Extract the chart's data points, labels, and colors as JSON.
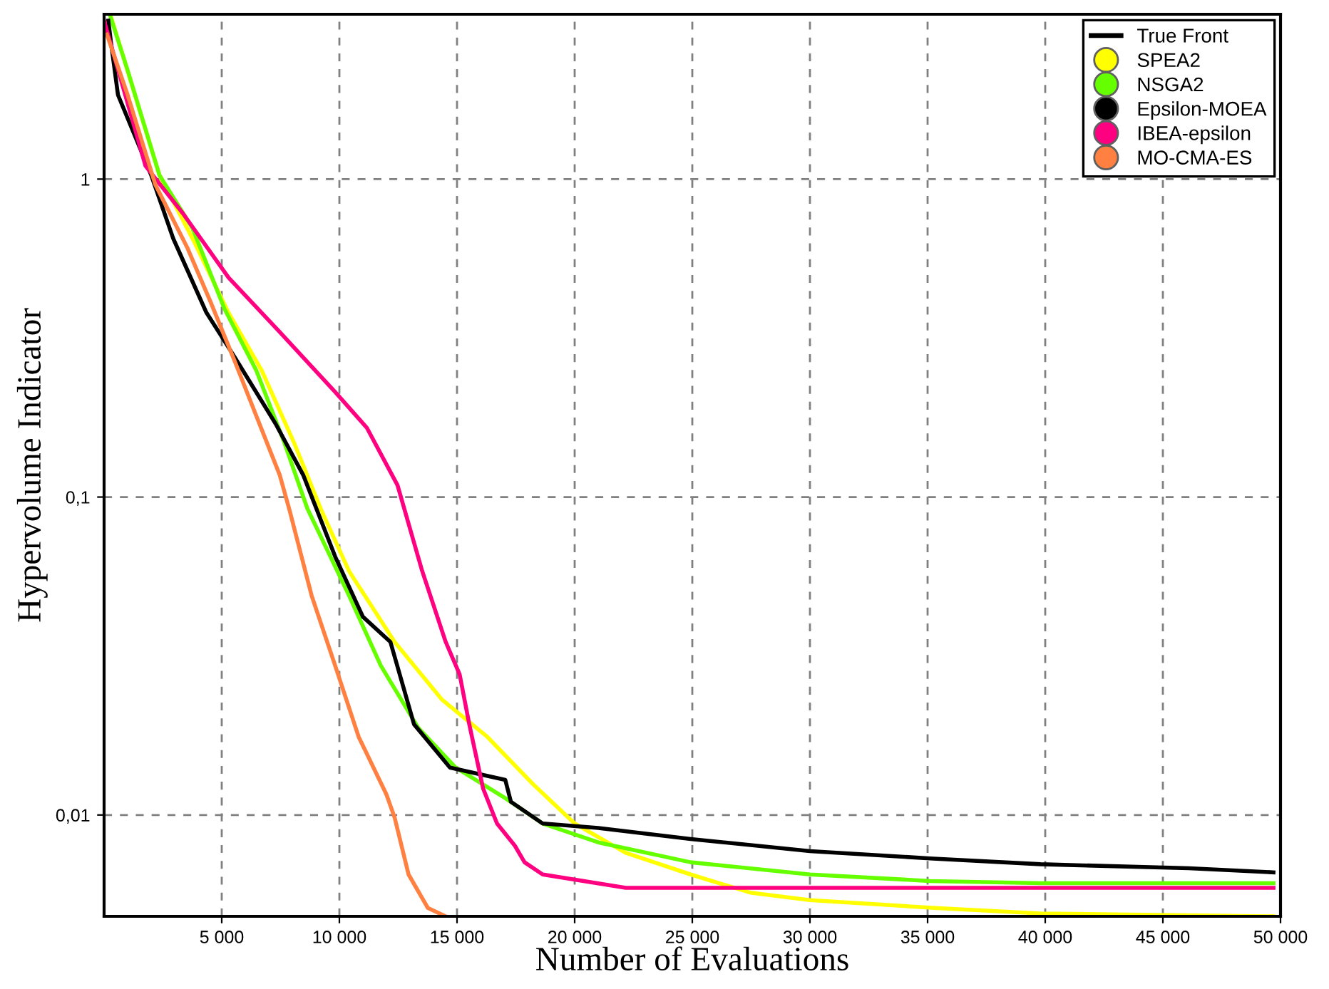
{
  "chart_data": {
    "type": "line",
    "xlabel": "Number of Evaluations",
    "ylabel": "Hypervolume Indicator",
    "log": "y",
    "grid": true,
    "legend": "top right",
    "line_style": "solid",
    "xlim": [
      0,
      50000
    ],
    "ylim": [
      0.0048,
      3.3
    ],
    "xticks": [
      {
        "value": 5000,
        "label": "5 000"
      },
      {
        "value": 10000,
        "label": "10 000"
      },
      {
        "value": 15000,
        "label": "15 000"
      },
      {
        "value": 20000,
        "label": "20 000"
      },
      {
        "value": 25000,
        "label": "25 000"
      },
      {
        "value": 30000,
        "label": "30 000"
      },
      {
        "value": 35000,
        "label": "35 000"
      },
      {
        "value": 40000,
        "label": "40 000"
      },
      {
        "value": 45000,
        "label": "45 000"
      },
      {
        "value": 50000,
        "label": "50 000"
      }
    ],
    "yticks": [
      {
        "value": 0.01,
        "label": "0,01"
      },
      {
        "value": 0.1,
        "label": "0,1"
      },
      1
    ],
    "series": [
      {
        "name": "True Front",
        "color": "#000000"
      },
      {
        "name": "SPEA2",
        "color": "#ffff00",
        "x": [
          290,
          2350,
          3760,
          5290,
          6700,
          8060,
          9230,
          10410,
          12350,
          14350,
          16290,
          18230,
          20000,
          22170,
          24930,
          27460,
          30000,
          35300,
          39800,
          49700
        ],
        "values": [
          3.25,
          1.03,
          0.65,
          0.38,
          0.25,
          0.149,
          0.091,
          0.0585,
          0.035,
          0.0231,
          0.0176,
          0.0125,
          0.0094,
          0.0076,
          0.0065,
          0.0057,
          0.0054,
          0.0051,
          0.0049,
          0.0048
        ]
      },
      {
        "name": "NSGA2",
        "color": "#66ff00",
        "x": [
          240,
          1000,
          2350,
          3760,
          5120,
          6470,
          7650,
          8640,
          9410,
          10410,
          11760,
          13350,
          14940,
          17050,
          18640,
          21000,
          24930,
          30000,
          35100,
          39800,
          49700
        ],
        "values": [
          3.3,
          2.2,
          1.03,
          0.7,
          0.39,
          0.25,
          0.149,
          0.092,
          0.07,
          0.049,
          0.0295,
          0.0188,
          0.0141,
          0.0113,
          0.0094,
          0.0082,
          0.0071,
          0.0065,
          0.0062,
          0.0061,
          0.0061
        ]
      },
      {
        "name": "Epsilon-MOEA",
        "color": "#000000",
        "x": [
          180,
          290,
          590,
          2000,
          2940,
          4350,
          5530,
          7290,
          8470,
          9820,
          11000,
          12170,
          13170,
          14700,
          17050,
          17290,
          18640,
          21000,
          24930,
          30000,
          35100,
          39800,
          46100,
          49700
        ],
        "values": [
          3.15,
          2.7,
          1.84,
          1.03,
          0.65,
          0.38,
          0.277,
          0.17,
          0.117,
          0.065,
          0.042,
          0.035,
          0.0193,
          0.0141,
          0.0129,
          0.011,
          0.0094,
          0.0091,
          0.0084,
          0.0077,
          0.0073,
          0.007,
          0.0068,
          0.0066
        ]
      },
      {
        "name": "IBEA-epsilon",
        "color": "#ff0080",
        "x": [
          0,
          1760,
          3350,
          5290,
          7470,
          9820,
          11170,
          12470,
          13520,
          14520,
          15110,
          15520,
          16110,
          16700,
          17460,
          17870,
          18640,
          22170,
          30000,
          40000,
          49700
        ],
        "values": [
          3.15,
          1.1,
          0.78,
          0.49,
          0.33,
          0.214,
          0.165,
          0.109,
          0.0585,
          0.035,
          0.0277,
          0.0193,
          0.0121,
          0.0094,
          0.008,
          0.0071,
          0.0065,
          0.0059,
          0.0059,
          0.0059,
          0.0059
        ]
      },
      {
        "name": "MO-CMA-ES",
        "color": "#ff8040",
        "x": [
          120,
          1000,
          2180,
          3530,
          4530,
          5530,
          6470,
          7470,
          7880,
          8820,
          9820,
          10820,
          12000,
          12350,
          12940,
          13760,
          14520
        ],
        "values": [
          2.85,
          1.84,
          0.96,
          0.61,
          0.41,
          0.27,
          0.18,
          0.117,
          0.091,
          0.049,
          0.0295,
          0.0176,
          0.0116,
          0.0098,
          0.0065,
          0.0051,
          0.0048
        ]
      }
    ]
  }
}
